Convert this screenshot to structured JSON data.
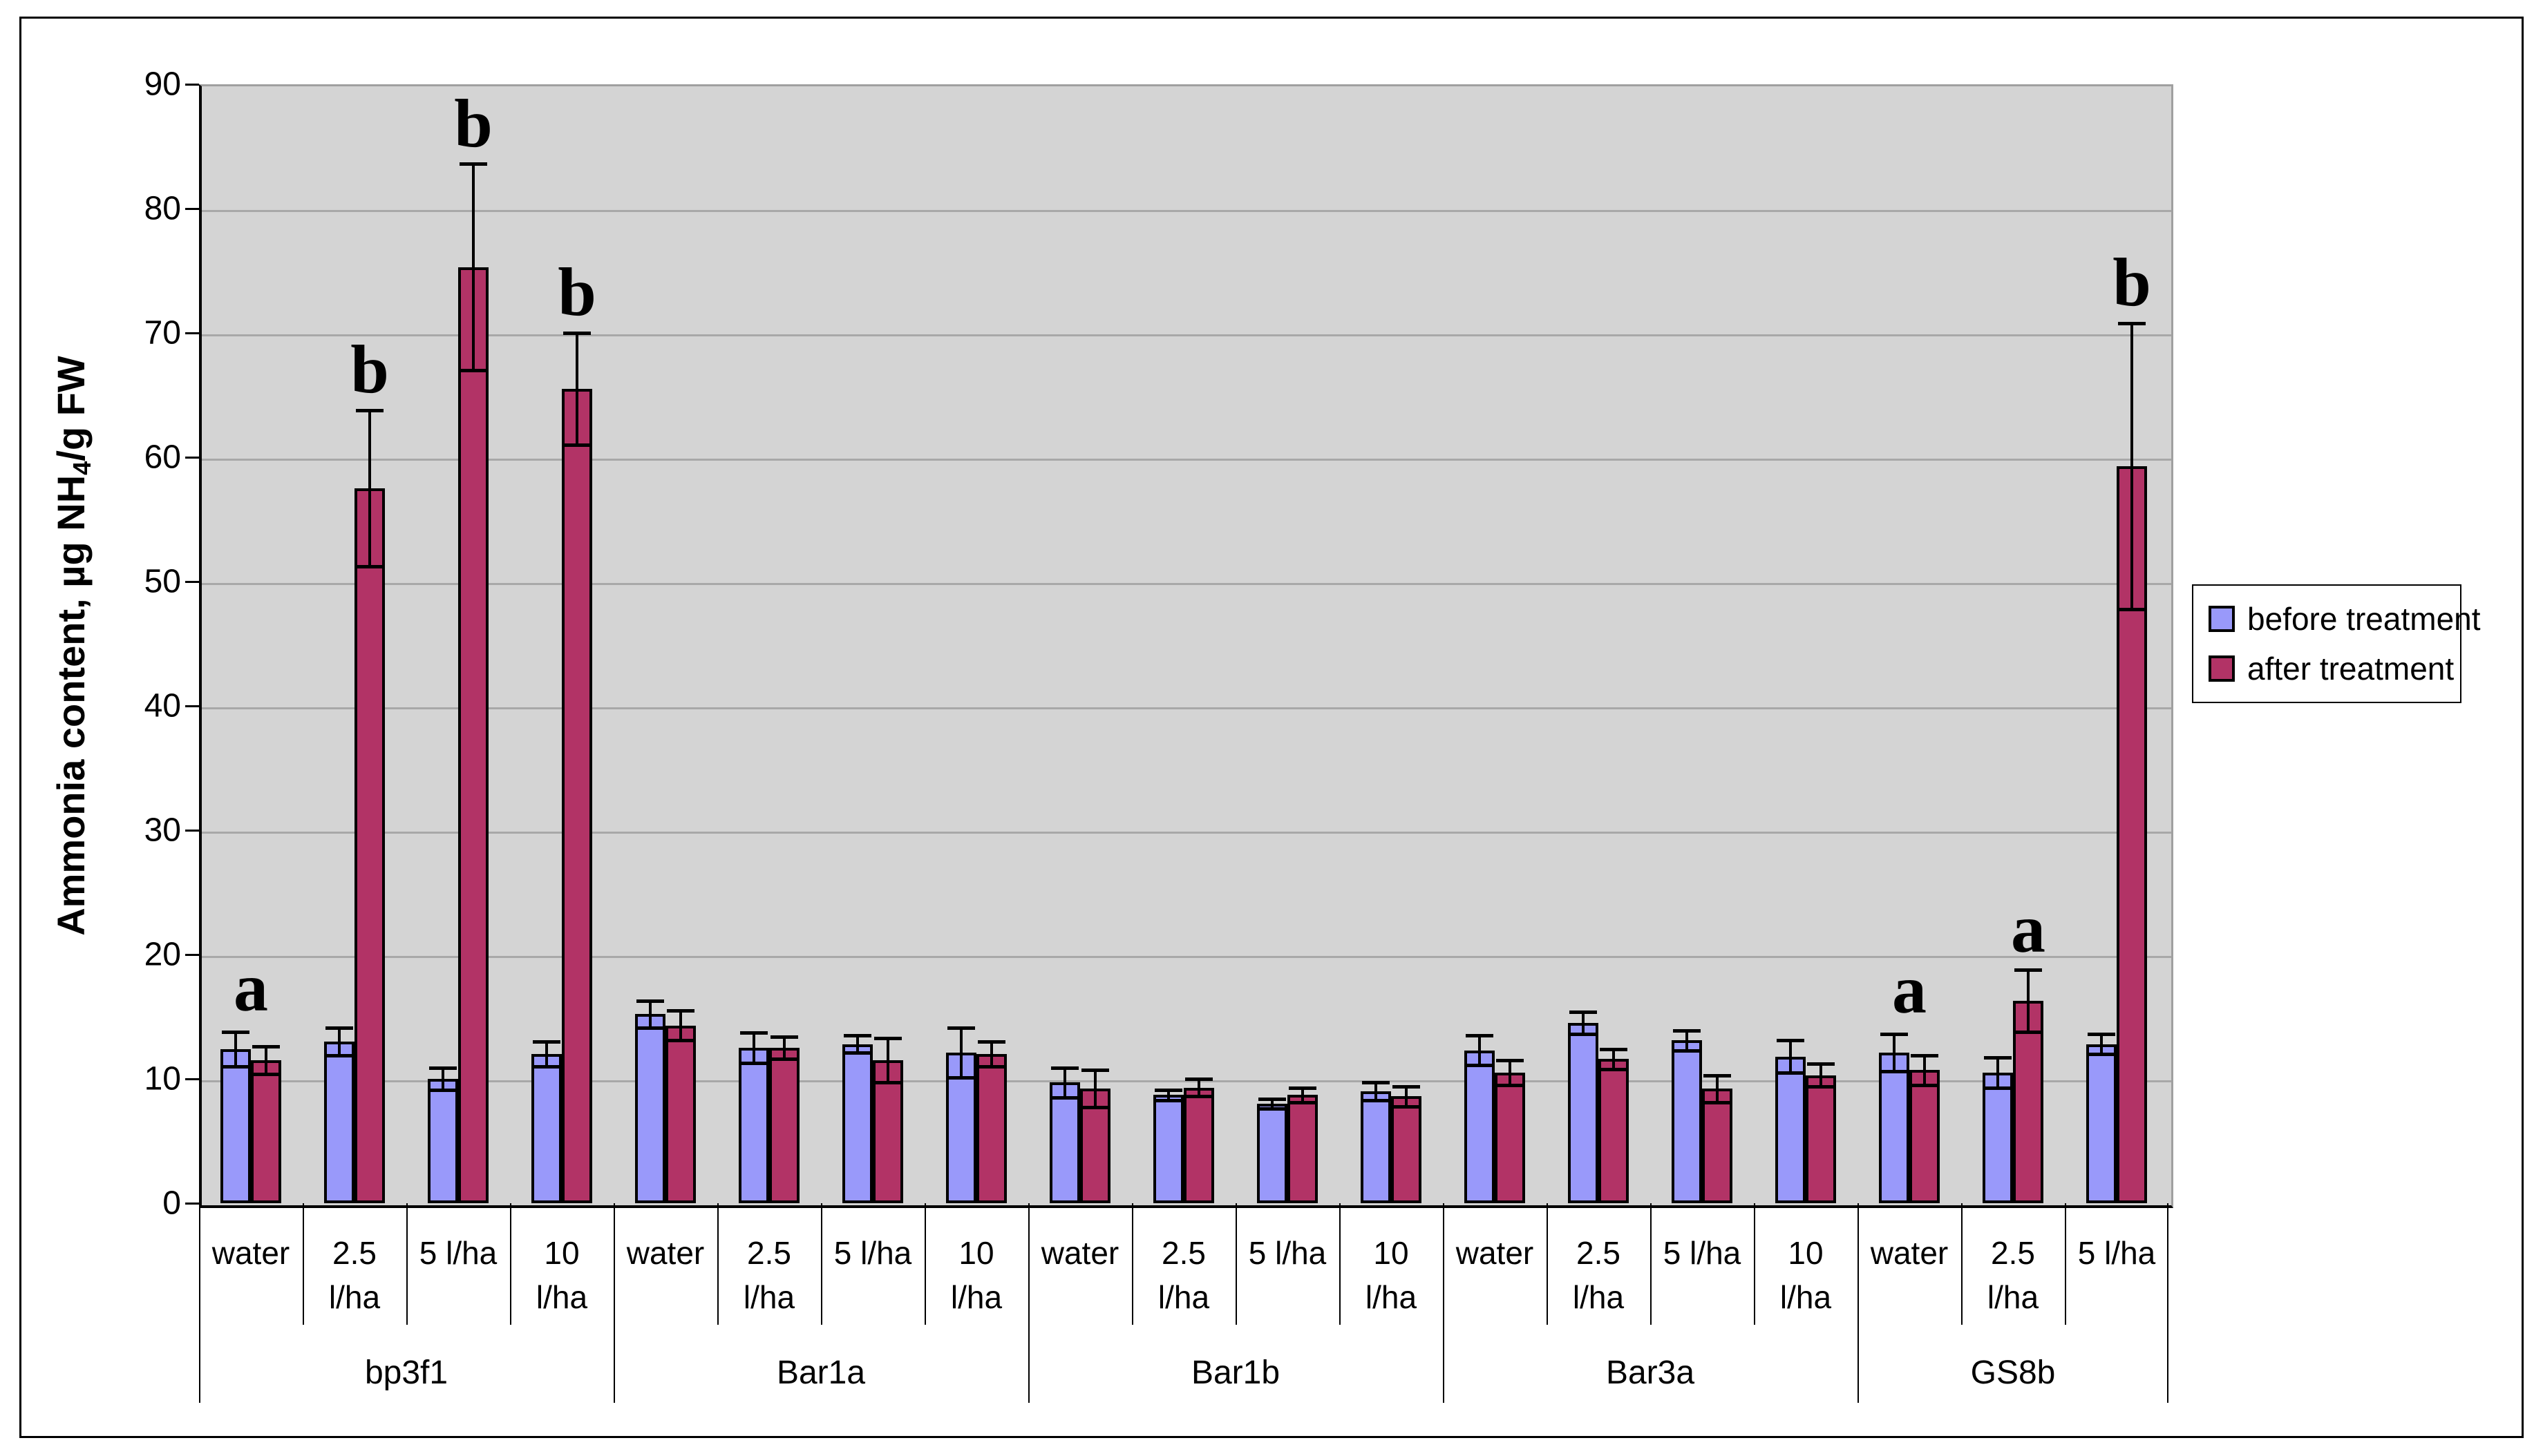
{
  "y_axis": {
    "title_prefix": "Ammonia content, µg NH",
    "title_sub": "4",
    "title_suffix": "/g FW",
    "min": 0,
    "max": 90,
    "tick_step": 10,
    "ticks": [
      0,
      10,
      20,
      30,
      40,
      50,
      60,
      70,
      80,
      90
    ]
  },
  "chart_data": {
    "type": "bar",
    "title": "",
    "xlabel": "",
    "ylabel": "Ammonia content, µg NH4/g FW",
    "ylim": [
      0,
      90
    ],
    "grid": true,
    "legend_position": "right",
    "plot_bg_color": "#D4D4D4",
    "gridline_color": "#A8A8A8",
    "series": [
      {
        "name": "before treatment",
        "color": "#9999FA"
      },
      {
        "name": "after treatment",
        "color": "#B23366"
      }
    ],
    "groups": [
      {
        "name": "bp3f1",
        "treatments": [
          {
            "label_lines": [
              "water"
            ],
            "before": 12.4,
            "before_err": 1.4,
            "after": 11.5,
            "after_err": 1.1,
            "letter": "a",
            "letter_on": "pair"
          },
          {
            "label_lines": [
              "2.5",
              "l/ha"
            ],
            "before": 13.0,
            "before_err": 1.1,
            "after": 57.5,
            "after_err": 6.3,
            "letter": "b",
            "letter_on": "after"
          },
          {
            "label_lines": [
              "5 l/ha"
            ],
            "before": 10.0,
            "before_err": 0.9,
            "after": 75.3,
            "after_err": 8.3,
            "letter": "b",
            "letter_on": "after"
          },
          {
            "label_lines": [
              "10",
              "l/ha"
            ],
            "before": 12.0,
            "before_err": 1.0,
            "after": 65.5,
            "after_err": 4.5,
            "letter": "b",
            "letter_on": "after"
          }
        ]
      },
      {
        "name": "Bar1a",
        "treatments": [
          {
            "label_lines": [
              "water"
            ],
            "before": 15.2,
            "before_err": 1.1,
            "after": 14.3,
            "after_err": 1.2,
            "letter": null,
            "letter_on": null
          },
          {
            "label_lines": [
              "2.5",
              "l/ha"
            ],
            "before": 12.5,
            "before_err": 1.2,
            "after": 12.5,
            "after_err": 0.9,
            "letter": null,
            "letter_on": null
          },
          {
            "label_lines": [
              "5 l/ha"
            ],
            "before": 12.8,
            "before_err": 0.7,
            "after": 11.5,
            "after_err": 1.8,
            "letter": null,
            "letter_on": null
          },
          {
            "label_lines": [
              "10",
              "l/ha"
            ],
            "before": 12.1,
            "before_err": 2.0,
            "after": 12.0,
            "after_err": 1.0,
            "letter": null,
            "letter_on": null
          }
        ]
      },
      {
        "name": "Bar1b",
        "treatments": [
          {
            "label_lines": [
              "water"
            ],
            "before": 9.7,
            "before_err": 1.2,
            "after": 9.2,
            "after_err": 1.5,
            "letter": null,
            "letter_on": null
          },
          {
            "label_lines": [
              "2.5",
              "l/ha"
            ],
            "before": 8.7,
            "before_err": 0.4,
            "after": 9.3,
            "after_err": 0.7,
            "letter": null,
            "letter_on": null
          },
          {
            "label_lines": [
              "5 l/ha"
            ],
            "before": 8.0,
            "before_err": 0.4,
            "after": 8.7,
            "after_err": 0.6,
            "letter": null,
            "letter_on": null
          },
          {
            "label_lines": [
              "10",
              "l/ha"
            ],
            "before": 9.0,
            "before_err": 0.7,
            "after": 8.6,
            "after_err": 0.8,
            "letter": null,
            "letter_on": null
          }
        ]
      },
      {
        "name": "Bar3a",
        "treatments": [
          {
            "label_lines": [
              "water"
            ],
            "before": 12.3,
            "before_err": 1.2,
            "after": 10.5,
            "after_err": 1.0,
            "letter": null,
            "letter_on": null
          },
          {
            "label_lines": [
              "2.5",
              "l/ha"
            ],
            "before": 14.5,
            "before_err": 0.9,
            "after": 11.6,
            "after_err": 0.8,
            "letter": null,
            "letter_on": null
          },
          {
            "label_lines": [
              "5 l/ha"
            ],
            "before": 13.1,
            "before_err": 0.8,
            "after": 9.2,
            "after_err": 1.1,
            "letter": null,
            "letter_on": null
          },
          {
            "label_lines": [
              "10",
              "l/ha"
            ],
            "before": 11.8,
            "before_err": 1.3,
            "after": 10.3,
            "after_err": 0.9,
            "letter": null,
            "letter_on": null
          }
        ]
      },
      {
        "name": "GS8b",
        "treatments": [
          {
            "label_lines": [
              "water"
            ],
            "before": 12.1,
            "before_err": 1.5,
            "after": 10.7,
            "after_err": 1.2,
            "letter": "a",
            "letter_on": "pair"
          },
          {
            "label_lines": [
              "2.5",
              "l/ha"
            ],
            "before": 10.5,
            "before_err": 1.2,
            "after": 16.3,
            "after_err": 2.5,
            "letter": "a",
            "letter_on": "after"
          },
          {
            "label_lines": [
              "5 l/ha"
            ],
            "before": 12.8,
            "before_err": 0.8,
            "after": 59.3,
            "after_err": 11.5,
            "letter": "b",
            "letter_on": "after"
          }
        ]
      }
    ]
  }
}
